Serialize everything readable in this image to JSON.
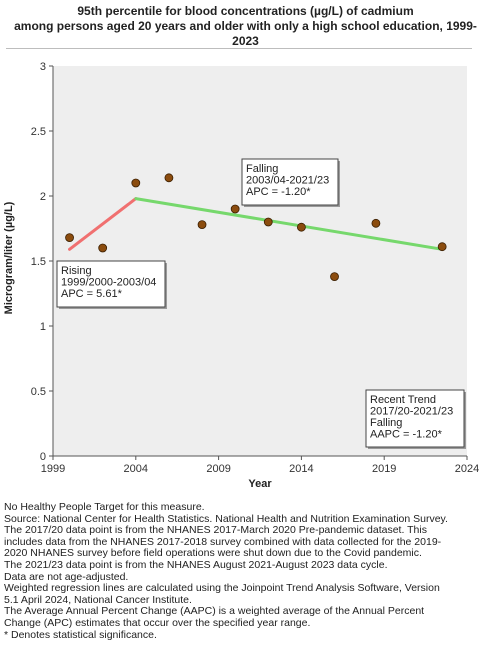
{
  "title_lines": [
    "95th percentile for blood concentrations (µg/L) of cadmium",
    "among persons aged 20 years and older with only a high school education, 1999-",
    "2023"
  ],
  "chart_data": {
    "type": "scatter",
    "title": "95th percentile for blood concentrations (µg/L) of cadmium among persons aged 20 years and older with only a high school education, 1999-2023",
    "xlabel": "Year",
    "ylabel": "Microgram/liter (µg/L)",
    "xlim": [
      1999,
      2024
    ],
    "ylim": [
      0,
      3
    ],
    "xticks": [
      1999,
      2004,
      2009,
      2014,
      2019,
      2024
    ],
    "yticks": [
      0,
      0.5,
      1,
      1.5,
      2,
      2.5,
      3
    ],
    "ytick_labels": [
      "0",
      "0.5",
      "1",
      "1.5",
      "2",
      "2.5",
      "3"
    ],
    "grid": false,
    "points": {
      "x": [
        2000,
        2002,
        2004,
        2006,
        2008,
        2010,
        2012,
        2014,
        2016,
        2018.5,
        2022.5
      ],
      "y": [
        1.68,
        1.6,
        2.1,
        2.14,
        1.78,
        1.9,
        1.8,
        1.76,
        1.38,
        1.79,
        1.61
      ],
      "color": "#8b4c0e"
    },
    "trend_lines": [
      {
        "x": [
          2000,
          2004
        ],
        "y": [
          1.59,
          1.98
        ],
        "color": "#f07070"
      },
      {
        "x": [
          2004,
          2022.5
        ],
        "y": [
          1.98,
          1.59
        ],
        "color": "#76d86c"
      }
    ],
    "annotations": [
      {
        "lines": [
          "Rising",
          "1999/2000-2003/04",
          "APC =  5.61*"
        ]
      },
      {
        "lines": [
          "Falling",
          "2003/04-2021/23",
          "APC = -1.20*"
        ]
      },
      {
        "lines": [
          "Recent Trend",
          "2017/20-2021/23",
          "Falling",
          "AAPC = -1.20*"
        ]
      }
    ]
  },
  "notes": [
    "No Healthy People Target for this measure.",
    "Source: National Center for Health Statistics. National Health and Nutrition Examination Survey.",
    "The 2017/20 data point is from the NHANES 2017-March 2020 Pre-pandemic dataset. This",
    "includes data from the NHANES 2017-2018 survey combined with data collected for the 2019-",
    "2020 NHANES survey before field operations were shut down due to the Covid pandemic.",
    "The 2021/23 data point is from the NHANES August 2021-August 2023 data cycle.",
    "Data are not age-adjusted.",
    "Weighted regression lines are calculated using the Joinpoint Trend Analysis Software, Version",
    "5.1 April 2024, National Cancer Institute.",
    "The Average Annual Percent Change (AAPC) is a weighted average of the Annual Percent",
    "Change (APC) estimates that occur over the specified year range.",
    "* Denotes statistical significance."
  ]
}
